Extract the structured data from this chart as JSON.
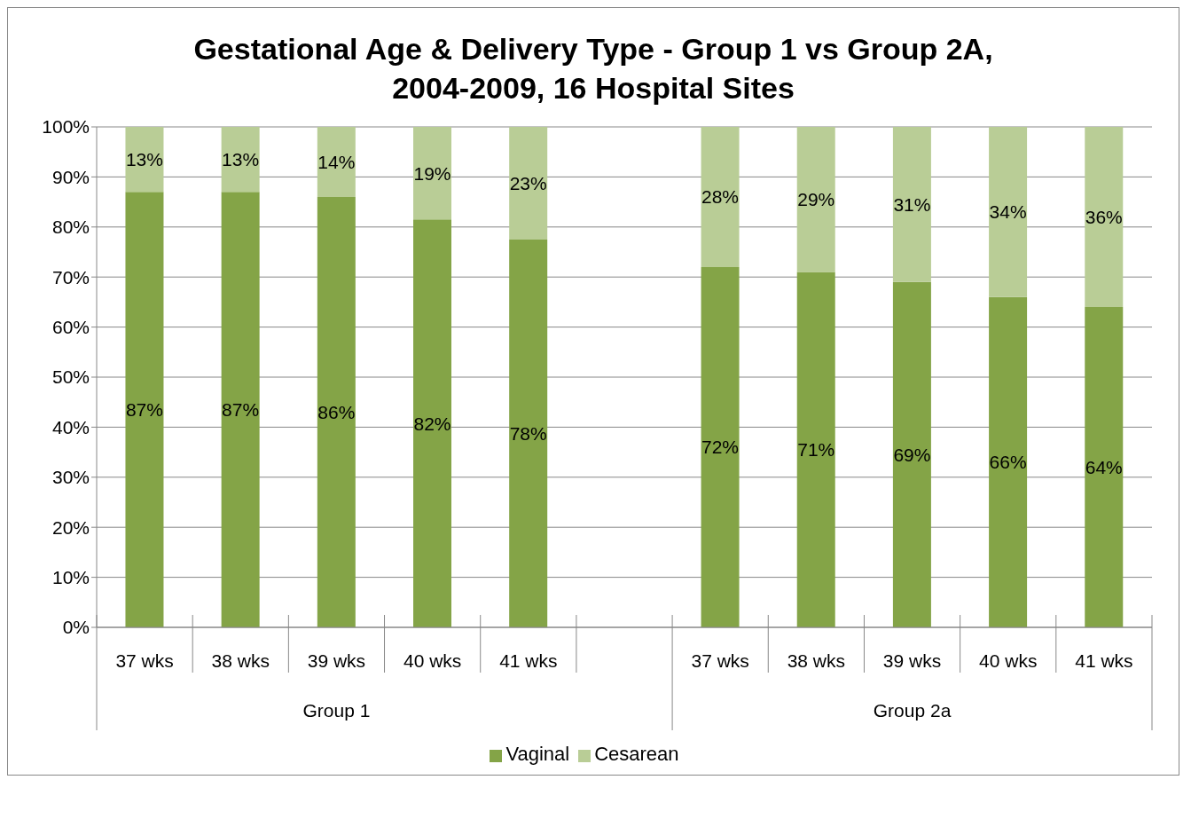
{
  "chart_data": {
    "type": "bar",
    "title": "Gestational Age & Delivery Type - Group 1 vs Group 2A, 2004-2009, 16 Hospital Sites",
    "categories": [
      "37 wks",
      "38 wks",
      "39 wks",
      "40 wks",
      "41 wks",
      null,
      "37 wks",
      "38 wks",
      "39 wks",
      "40 wks",
      "41 wks"
    ],
    "series": [
      {
        "name": "Vaginal",
        "color": "#84a447",
        "values": [
          87,
          87,
          86,
          81.5,
          77.5,
          null,
          72,
          71,
          69,
          66,
          64
        ],
        "value_labels": [
          "87%",
          "87%",
          "86%",
          "82%",
          "78%",
          null,
          "72%",
          "71%",
          "69%",
          "66%",
          "64%"
        ]
      },
      {
        "name": "Cesarean",
        "color": "#b9cd96",
        "values": [
          13,
          13,
          14,
          18.5,
          22.5,
          null,
          28,
          29,
          31,
          34,
          36
        ],
        "value_labels": [
          "13%",
          "13%",
          "14%",
          "19%",
          "23%",
          null,
          "28%",
          "29%",
          "31%",
          "34%",
          "36%"
        ]
      }
    ],
    "stacked": true,
    "ylim": [
      0,
      100
    ],
    "yticks": [
      {
        "value": 0,
        "label": "0%"
      },
      {
        "value": 10,
        "label": "10%"
      },
      {
        "value": 20,
        "label": "20%"
      },
      {
        "value": 30,
        "label": "30%"
      },
      {
        "value": 40,
        "label": "40%"
      },
      {
        "value": 50,
        "label": "50%"
      },
      {
        "value": 60,
        "label": "60%"
      },
      {
        "value": 70,
        "label": "70%"
      },
      {
        "value": 80,
        "label": "80%"
      },
      {
        "value": 90,
        "label": "90%"
      },
      {
        "value": 100,
        "label": "100%"
      }
    ],
    "grid": "y",
    "legend": "bottom",
    "annotations": [
      "Group 1",
      "Group 2a"
    ]
  }
}
